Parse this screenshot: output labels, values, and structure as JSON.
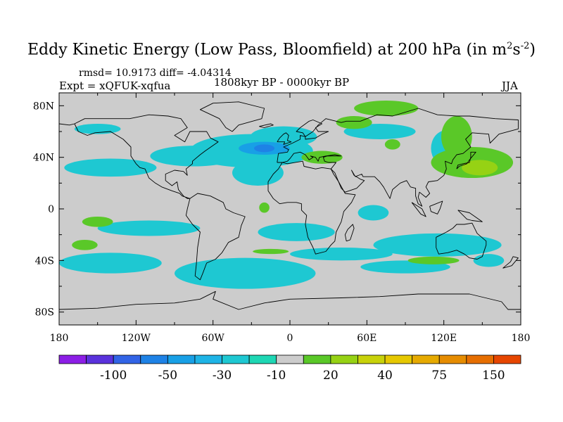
{
  "title": {
    "main": "Eddy Kinetic Energy (Low Pass, Bloomfield) at 200 hPa (in m",
    "sup1": "2",
    "mid": "s",
    "sup2": "-2",
    "end": ")"
  },
  "stats": "rmsd= 10.9173 diff= -4.04314",
  "expt": "Expt = xQFUK-xqfua",
  "period": "1808kyr BP - 0000kyr BP",
  "season": "JJA",
  "colors": {
    "background": "#cccccc",
    "palette": [
      "#8c1ee6",
      "#5a32dc",
      "#3264e6",
      "#1e82e6",
      "#18a0e6",
      "#1eb4e6",
      "#1ec8d2",
      "#1ed7b4",
      "#cccccc",
      "#5ac828",
      "#96d214",
      "#c8d20a",
      "#e6c800",
      "#e6aa00",
      "#e68c00",
      "#e66e00",
      "#e64600"
    ]
  },
  "chart_data": {
    "type": "filled-contour-map",
    "title": "Eddy Kinetic Energy (Low Pass, Bloomfield) at 200 hPa (in m^2s^-2)",
    "x_axis": {
      "range": [
        -180,
        180
      ],
      "ticks": [
        -180,
        -120,
        -60,
        0,
        60,
        120,
        180
      ],
      "tick_labels": [
        "180",
        "120W",
        "60W",
        "0",
        "60E",
        "120E",
        "180"
      ]
    },
    "y_axis": {
      "range": [
        -90,
        90
      ],
      "ticks": [
        80,
        40,
        0,
        -40,
        -80
      ],
      "tick_labels": [
        "80N",
        "40N",
        "0",
        "40S",
        "80S"
      ]
    },
    "colorbar": {
      "tick_labels": [
        "-100",
        "-50",
        "-30",
        "-10",
        "20",
        "40",
        "75",
        "150"
      ],
      "n_colors": 17
    },
    "regions": [
      {
        "level": -20,
        "lon": -30,
        "lat": 45,
        "rx": 48,
        "ry": 13
      },
      {
        "level": -20,
        "lon": -75,
        "lat": 41,
        "rx": 34,
        "ry": 8
      },
      {
        "level": -20,
        "lon": -140,
        "lat": 32,
        "rx": 36,
        "ry": 7
      },
      {
        "level": -20,
        "lon": -25,
        "lat": 28,
        "rx": 20,
        "ry": 10
      },
      {
        "level": -20,
        "lon": -5,
        "lat": 56,
        "rx": 26,
        "ry": 8
      },
      {
        "level": -20,
        "lon": 70,
        "lat": 60,
        "rx": 28,
        "ry": 6
      },
      {
        "level": -20,
        "lon": 122,
        "lat": 47,
        "rx": 12,
        "ry": 14
      },
      {
        "level": -20,
        "lon": -150,
        "lat": 62,
        "rx": 18,
        "ry": 4
      },
      {
        "level": -30,
        "lon": -20,
        "lat": 47,
        "rx": 20,
        "ry": 5
      },
      {
        "level": -40,
        "lon": -20,
        "lat": 47,
        "rx": 8,
        "ry": 3
      },
      {
        "level": -20,
        "lon": -110,
        "lat": -15,
        "rx": 40,
        "ry": 6
      },
      {
        "level": -20,
        "lon": 5,
        "lat": -18,
        "rx": 30,
        "ry": 7
      },
      {
        "level": -20,
        "lon": 65,
        "lat": -3,
        "rx": 12,
        "ry": 6
      },
      {
        "level": -20,
        "lon": 40,
        "lat": -35,
        "rx": 40,
        "ry": 5
      },
      {
        "level": -20,
        "lon": -35,
        "lat": -50,
        "rx": 55,
        "ry": 12
      },
      {
        "level": -20,
        "lon": -140,
        "lat": -42,
        "rx": 40,
        "ry": 8
      },
      {
        "level": -20,
        "lon": 115,
        "lat": -28,
        "rx": 50,
        "ry": 9
      },
      {
        "level": -20,
        "lon": 90,
        "lat": -45,
        "rx": 35,
        "ry": 5
      },
      {
        "level": -20,
        "lon": 155,
        "lat": -40,
        "rx": 12,
        "ry": 5
      },
      {
        "level": 20,
        "lon": 75,
        "lat": 78,
        "rx": 25,
        "ry": 6
      },
      {
        "level": 20,
        "lon": 142,
        "lat": 36,
        "rx": 32,
        "ry": 12
      },
      {
        "level": 20,
        "lon": 130,
        "lat": 56,
        "rx": 12,
        "ry": 16
      },
      {
        "level": 20,
        "lon": 25,
        "lat": 40,
        "rx": 16,
        "ry": 5
      },
      {
        "level": 20,
        "lon": 50,
        "lat": 67,
        "rx": 14,
        "ry": 5
      },
      {
        "level": 20,
        "lon": 80,
        "lat": 50,
        "rx": 6,
        "ry": 4
      },
      {
        "level": 20,
        "lon": -150,
        "lat": -10,
        "rx": 12,
        "ry": 4
      },
      {
        "level": 20,
        "lon": -160,
        "lat": -28,
        "rx": 10,
        "ry": 4
      },
      {
        "level": 20,
        "lon": -15,
        "lat": -33,
        "rx": 14,
        "ry": 2
      },
      {
        "level": 20,
        "lon": 112,
        "lat": -40,
        "rx": 20,
        "ry": 3
      },
      {
        "level": 20,
        "lon": -20,
        "lat": 1,
        "rx": 4,
        "ry": 4
      },
      {
        "level": 40,
        "lon": 148,
        "lat": 32,
        "rx": 14,
        "ry": 6
      }
    ]
  }
}
